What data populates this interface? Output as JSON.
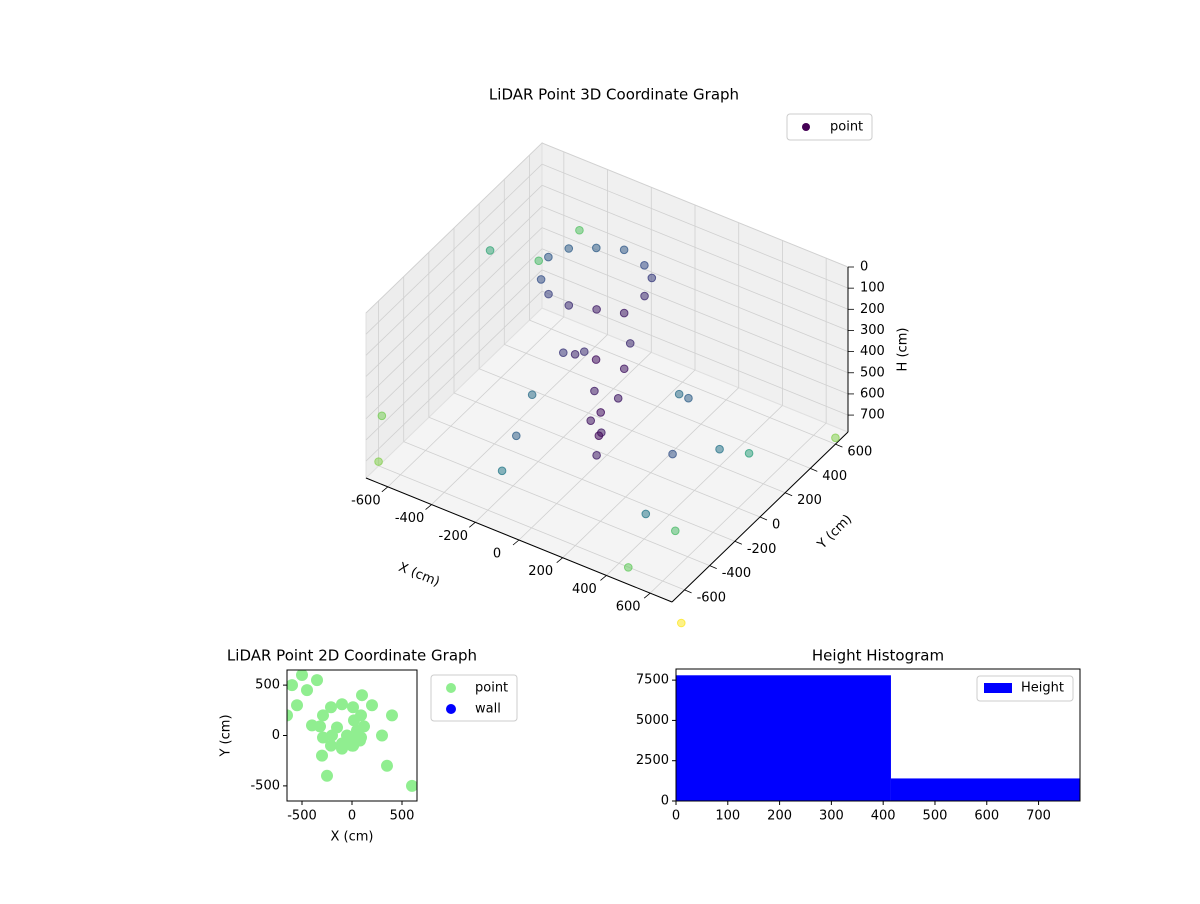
{
  "chart_data": [
    {
      "type": "scatter3d",
      "title": "LiDAR Point 3D Coordinate Graph",
      "xlabel": "X (cm)",
      "ylabel": "Y (cm)",
      "zlabel": "H (cm)",
      "xlim": [
        -700,
        700
      ],
      "ylim": [
        -700,
        700
      ],
      "zlim": [
        0,
        780
      ],
      "z_inverted": true,
      "xticks": [
        -600,
        -400,
        -200,
        0,
        200,
        400,
        600
      ],
      "yticks": [
        -600,
        -400,
        -200,
        0,
        200,
        400,
        600
      ],
      "zticks": [
        0,
        100,
        200,
        300,
        400,
        500,
        600,
        700
      ],
      "grid": true,
      "legend": "upper right",
      "colormap": [
        "#440154",
        "#3b528b",
        "#21918c",
        "#5ec962",
        "#fde725"
      ],
      "series": [
        {
          "name": "point",
          "color": "#440154",
          "x": [
            120,
            90,
            10,
            -100,
            -210,
            -290,
            -320,
            -290,
            -210,
            -100,
            10,
            90,
            -50,
            50,
            -150,
            0,
            -100,
            80,
            -200,
            20,
            0,
            20,
            -20,
            10,
            -40,
            300,
            -300,
            200,
            -400,
            350,
            100,
            -250,
            400,
            -650,
            -600,
            600,
            700,
            -700,
            500,
            650,
            -500,
            800,
            -800
          ],
          "y": [
            90,
            200,
            280,
            310,
            280,
            200,
            90,
            -20,
            -100,
            -130,
            -100,
            -20,
            0,
            50,
            80,
            -100,
            -80,
            -50,
            0,
            150,
            -50,
            -80,
            -30,
            -100,
            -60,
            0,
            -200,
            300,
            100,
            -300,
            400,
            -400,
            200,
            200,
            500,
            -500,
            600,
            -600,
            -700,
            0,
            650,
            -800,
            -400
          ],
          "h": [
            30,
            20,
            40,
            30,
            50,
            40,
            30,
            60,
            50,
            40,
            30,
            60,
            350,
            380,
            400,
            420,
            300,
            450,
            380,
            330,
            550,
            620,
            680,
            720,
            600,
            650,
            700,
            600,
            720,
            740,
            680,
            730,
            700,
            200,
            400,
            600,
            750,
            760,
            700,
            500,
            300,
            780,
            700
          ]
        }
      ]
    },
    {
      "type": "scatter",
      "title": "LiDAR Point 2D Coordinate Graph",
      "xlabel": "X (cm)",
      "ylabel": "Y (cm)",
      "xlim": [
        -650,
        650
      ],
      "ylim": [
        -650,
        650
      ],
      "xticks": [
        -500,
        0,
        500
      ],
      "yticks": [
        -500,
        0,
        500
      ],
      "legend": "outside right",
      "series": [
        {
          "name": "point",
          "color": "#90ee90",
          "x": [
            120,
            90,
            10,
            -100,
            -210,
            -290,
            -320,
            -290,
            -210,
            -100,
            10,
            90,
            -50,
            50,
            -150,
            0,
            -100,
            80,
            -200,
            20,
            0,
            20,
            -20,
            10,
            -40,
            300,
            -300,
            200,
            -400,
            350,
            100,
            -250,
            400,
            -650,
            -600,
            600,
            -500,
            -550,
            -450,
            -350
          ],
          "y": [
            90,
            200,
            280,
            310,
            280,
            200,
            90,
            -20,
            -100,
            -130,
            -100,
            -20,
            0,
            50,
            80,
            -100,
            -80,
            -50,
            0,
            150,
            -50,
            -80,
            -30,
            -100,
            -60,
            0,
            -200,
            300,
            100,
            -300,
            400,
            -400,
            200,
            200,
            500,
            -500,
            600,
            300,
            450,
            550
          ]
        },
        {
          "name": "wall",
          "color": "#0000ff",
          "x": [],
          "y": []
        }
      ]
    },
    {
      "type": "histogram",
      "title": "Height Histogram",
      "bins": [
        0,
        415,
        780
      ],
      "xlim": [
        0,
        780
      ],
      "ylim": [
        0,
        8190
      ],
      "xticks": [
        0,
        100,
        200,
        300,
        400,
        500,
        600,
        700
      ],
      "yticks": [
        0,
        2500,
        5000,
        7500
      ],
      "legend": "upper right",
      "series": [
        {
          "name": "Height",
          "color": "#0000ff",
          "values": [
            7800,
            1400
          ]
        }
      ]
    }
  ]
}
